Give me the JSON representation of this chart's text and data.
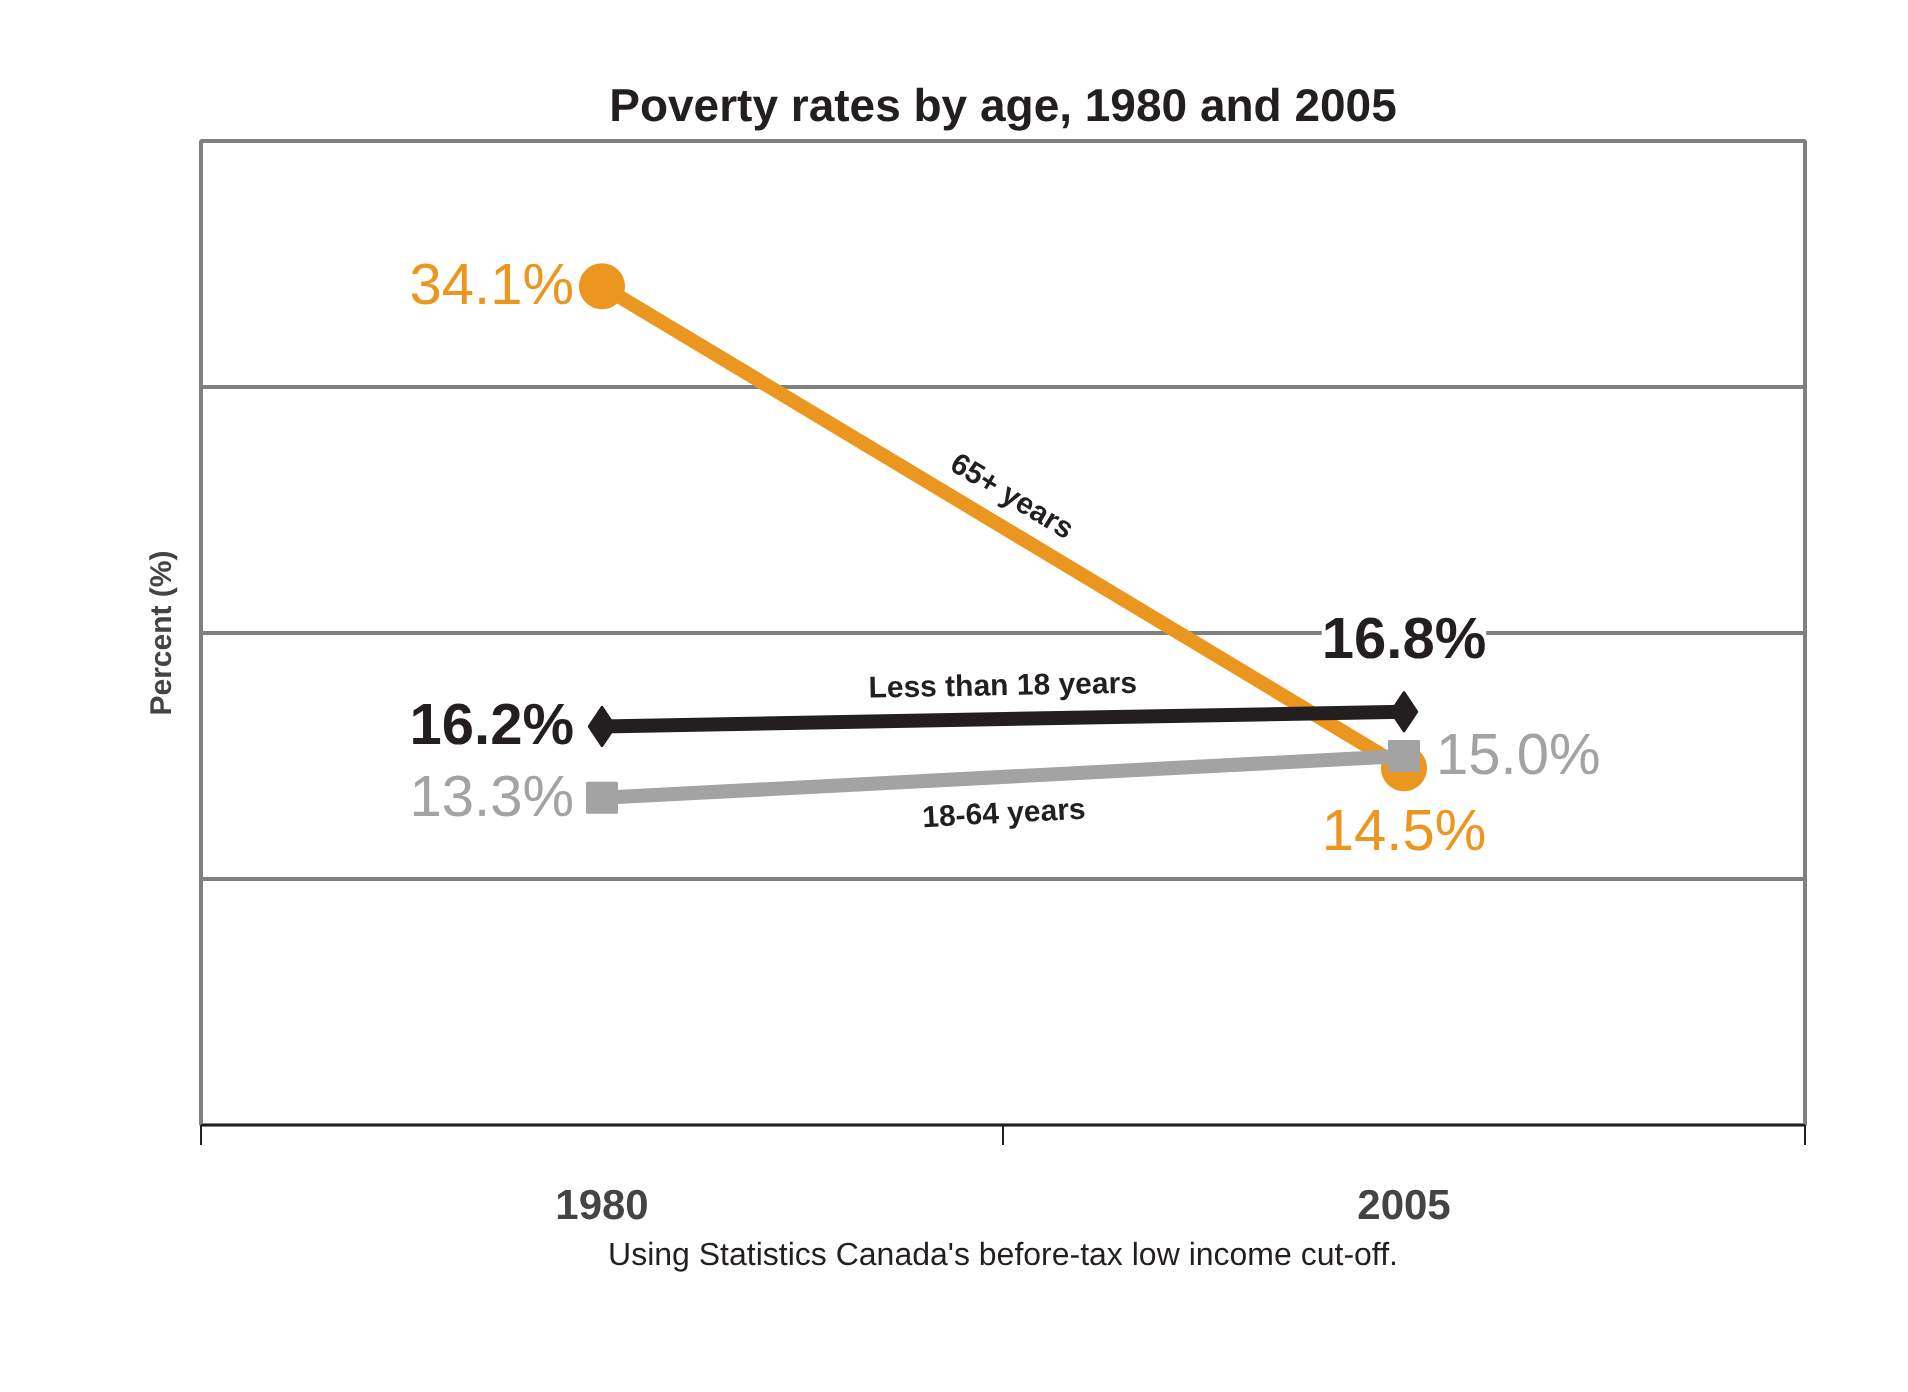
{
  "chart_data": {
    "type": "line",
    "title": "Poverty rates by age, 1980 and 2005",
    "ylabel": "Percent (%)",
    "categories": [
      "1980",
      "2005"
    ],
    "series": [
      {
        "name": "65+ years",
        "color": "#eb961e",
        "values": [
          34.1,
          14.5
        ],
        "marker": "circle",
        "value_labels": [
          "34.1%",
          "14.5%"
        ]
      },
      {
        "name": "Less than 18 years",
        "color": "#231f20",
        "values": [
          16.2,
          16.8
        ],
        "marker": "diamond",
        "value_labels": [
          "16.2%",
          "16.8%"
        ]
      },
      {
        "name": "18-64 years",
        "color": "#a3a3a3",
        "values": [
          13.3,
          15.0
        ],
        "marker": "square",
        "value_labels": [
          "13.3%",
          "15.0%"
        ]
      }
    ],
    "ylim": [
      0,
      40
    ],
    "yticks": [
      {
        "value": 0,
        "label": null
      },
      {
        "value": 10,
        "label": null
      },
      {
        "value": 20,
        "label": null
      },
      {
        "value": 30,
        "label": null
      },
      {
        "value": 40,
        "label": null
      }
    ],
    "grid": "y",
    "tick_labels": "x",
    "line_style": "solid",
    "annotations": [
      "Using Statistics Canada's before-tax low income cut-off."
    ]
  }
}
